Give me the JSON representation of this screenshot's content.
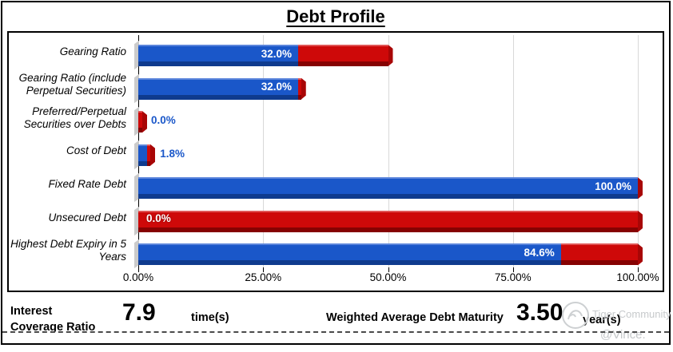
{
  "title": "Debt Profile",
  "colors": {
    "bar_blue": "#1a57c9",
    "bar_blue_dark": "#0f3b8e",
    "bar_red": "#ce0909",
    "bar_red_dark": "#860202",
    "gridline": "#d8d8d8",
    "outside_label_blue": "#1a57c9",
    "watermark_grey": "#c7cacc"
  },
  "chart_data": {
    "type": "bar",
    "orientation": "horizontal",
    "title": "Debt Profile",
    "grid": true,
    "legend": "none",
    "xlim": [
      0,
      100
    ],
    "x_tick_positions": [
      0,
      25,
      50,
      75,
      100
    ],
    "x_ticks": [
      "0.00%",
      "25.00%",
      "50.00%",
      "75.00%",
      "100.00%"
    ],
    "categories": [
      "Gearing Ratio",
      "Gearing Ratio (include Perpetual Securities)",
      "Preferred/Perpetual Securities over Debts",
      "Cost of Debt",
      "Fixed Rate Debt",
      "Unsecured Debt",
      "Highest Debt Expiry in 5 Years"
    ],
    "series": [
      {
        "name": "blue-value",
        "color": "#1a57c9",
        "values": [
          32.0,
          32.0,
          0.0,
          1.8,
          100.0,
          0.0,
          84.6
        ]
      },
      {
        "name": "red-comparison",
        "color": "#ce0909",
        "values": [
          50.0,
          32.6,
          0.8,
          2.4,
          100.0,
          100.0,
          100.0
        ],
        "note": "estimated from bar lengths; only blue series has printed labels"
      }
    ],
    "data_labels": [
      "32.0%",
      "32.0%",
      "0.0%",
      "1.8%",
      "100.0%",
      "0.0%",
      "84.6%"
    ],
    "data_label_styles": [
      "in-blue",
      "in-blue",
      "out",
      "out",
      "in-blue",
      "in-red",
      "in-blue"
    ]
  },
  "footer": {
    "icr_label": "Interest\nCoverage Ratio",
    "icr_value": "7.9",
    "icr_unit": "time(s)",
    "wadm_label": "Weighted Average Debt Maturity",
    "wadm_value": "3.50",
    "wadm_unit": "year(s)"
  },
  "watermark": {
    "community": "Tiger Community",
    "handle": "@Vince."
  }
}
